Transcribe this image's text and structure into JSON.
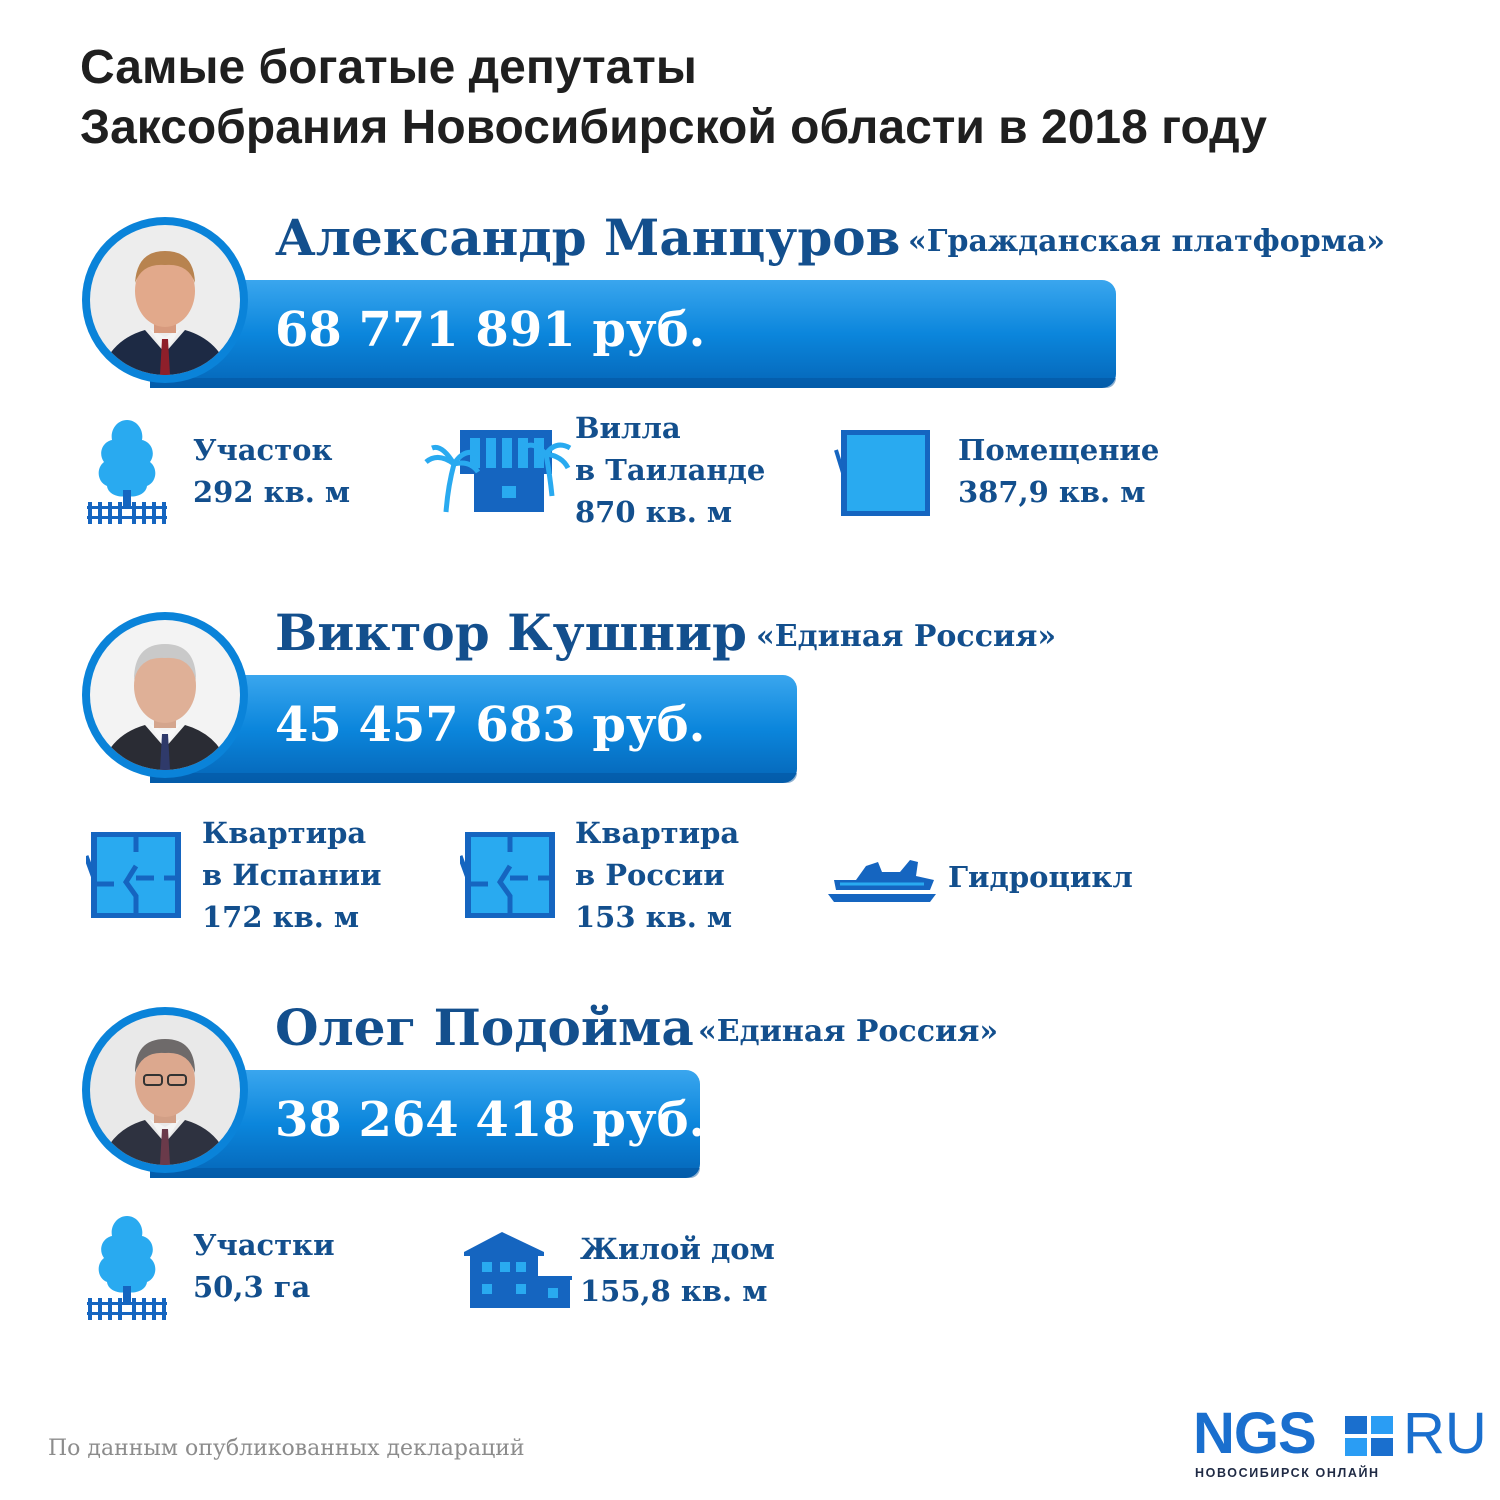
{
  "title": {
    "line1": "Самые богатые депутаты",
    "line2": "Заксобрания Новосибирской области в 2018 году"
  },
  "deputies": [
    {
      "name": "Александр Манцуров",
      "party": "«Гражданская платформа»",
      "income": "68 771 891 руб.",
      "assets": [
        {
          "icon": "tree-icon",
          "lines": [
            "Участок",
            "292 кв. м"
          ]
        },
        {
          "icon": "villa-palm-icon",
          "lines": [
            "Вилла",
            "в Таиланде",
            "870 кв. м"
          ]
        },
        {
          "icon": "room-icon",
          "lines": [
            "Помещение",
            "387,9 кв. м"
          ]
        }
      ]
    },
    {
      "name": "Виктор Кушнир",
      "party": "«Единая Россия»",
      "income": "45 457 683 руб.",
      "assets": [
        {
          "icon": "floorplan-icon",
          "lines": [
            "Квартира",
            "в Испании",
            "172 кв. м"
          ]
        },
        {
          "icon": "floorplan-icon",
          "lines": [
            "Квартира",
            "в России",
            "153 кв. м"
          ]
        },
        {
          "icon": "jetski-icon",
          "lines": [
            "Гидроцикл"
          ]
        }
      ]
    },
    {
      "name": "Олег Подойма",
      "party": "«Единая Россия»",
      "income": "38 264 418 руб.",
      "assets": [
        {
          "icon": "tree-icon",
          "lines": [
            "Участки",
            "50,3 га"
          ]
        },
        {
          "icon": "house-icon",
          "lines": [
            "Жилой дом",
            "155,8 кв. м"
          ]
        }
      ]
    }
  ],
  "footer": "По данным опубликованных деклараций",
  "logo": {
    "main": "NGS",
    "suffix": "RU",
    "subtitle": "НОВОСИБИРСК ОНЛАЙН"
  },
  "colors": {
    "accent": "#0a83d9",
    "text_dark_blue": "#134f8d",
    "icon_blue": "#1565c0",
    "icon_light": "#29aaf0"
  }
}
